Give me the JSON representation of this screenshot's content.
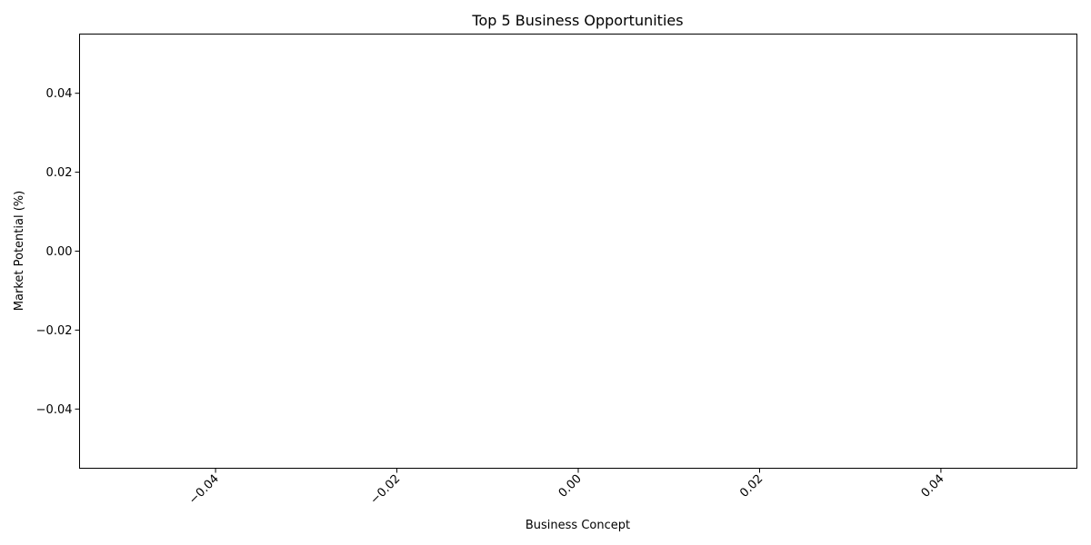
{
  "chart_data": {
    "type": "bar",
    "title": "Top 5 Business Opportunities",
    "xlabel": "Business Concept",
    "ylabel": "Market Potential (%)",
    "categories": [],
    "values": [],
    "xlim": [
      -0.055,
      0.055
    ],
    "ylim": [
      -0.055,
      0.055
    ],
    "x_ticks": [
      -0.04,
      -0.02,
      0.0,
      0.02,
      0.04
    ],
    "x_tick_labels": [
      "−0.04",
      "−0.02",
      "0.00",
      "0.02",
      "0.04"
    ],
    "y_ticks": [
      0.04,
      0.02,
      0.0,
      -0.02,
      -0.04
    ],
    "y_tick_labels": [
      "0.04",
      "0.02",
      "0.00",
      "−0.02",
      "−0.04"
    ],
    "x_tick_rotation_deg": -45,
    "grid": false,
    "legend": "none"
  }
}
